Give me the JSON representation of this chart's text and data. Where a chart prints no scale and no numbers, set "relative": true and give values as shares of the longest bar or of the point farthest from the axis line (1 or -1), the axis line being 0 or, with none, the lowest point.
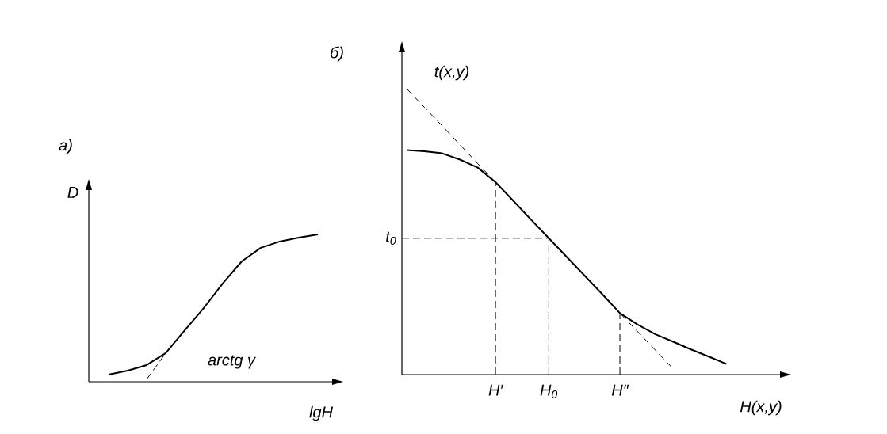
{
  "chart_data": [
    {
      "type": "line",
      "title": "а)",
      "xlabel": "lgH",
      "ylabel": "D",
      "relative": true,
      "annotations": [
        "arctg γ"
      ],
      "categories": [
        null,
        null,
        null,
        null,
        null,
        null,
        null,
        null,
        null,
        null,
        null,
        null
      ],
      "series": [
        {
          "color": "#000000",
          "line_style": "solid",
          "values": [
            0.048,
            0.075,
            0.113,
            0.194,
            0.349,
            0.5,
            0.667,
            0.817,
            0.909,
            0.952,
            0.978,
            1
          ]
        },
        {
          "color": "#000000",
          "line_style": "dashed",
          "values": [
            null,
            null,
            0.016,
            0.194,
            null,
            null,
            null,
            null,
            null,
            null,
            null,
            null
          ]
        }
      ]
    },
    {
      "type": "line",
      "title": "б)",
      "xlabel": "H(x,y)",
      "ylabel": "t(x,y)",
      "relative": true,
      "categories": [
        null,
        null,
        null,
        null,
        null,
        "H′",
        null,
        null,
        "H$_{0}$",
        null,
        null,
        null,
        "H″",
        null,
        null,
        null,
        null,
        null,
        null
      ],
      "series": [
        {
          "color": "#000000",
          "line_style": "solid",
          "values": [
            0.785,
            0.781,
            0.774,
            0.752,
            0.724,
            0.673,
            0.608,
            0.542,
            0.477,
            0.412,
            0.347,
            0.282,
            0.215,
            0.175,
            0.141,
            0.115,
            0.088,
            0.063,
            0.037
          ]
        },
        {
          "color": "#000000",
          "line_style": "dashed",
          "values": [
            1,
            0.935,
            0.87,
            0.804,
            0.738,
            0.673,
            0.608,
            0.542,
            0.477,
            0.412,
            0.347,
            0.282,
            0.215,
            0.15,
            0.085,
            0.02,
            null,
            null,
            null
          ]
        }
      ],
      "ref_lines": [
        {
          "axis": "x",
          "value": "H′",
          "line_style": "dashed"
        },
        {
          "axis": "x",
          "value": "H$_{0}$",
          "line_style": "dashed"
        },
        {
          "axis": "x",
          "value": "H″",
          "line_style": "dashed"
        },
        {
          "axis": "y",
          "value": 0.477,
          "label": "t$_{0}$",
          "line_style": "dashed"
        }
      ]
    }
  ]
}
